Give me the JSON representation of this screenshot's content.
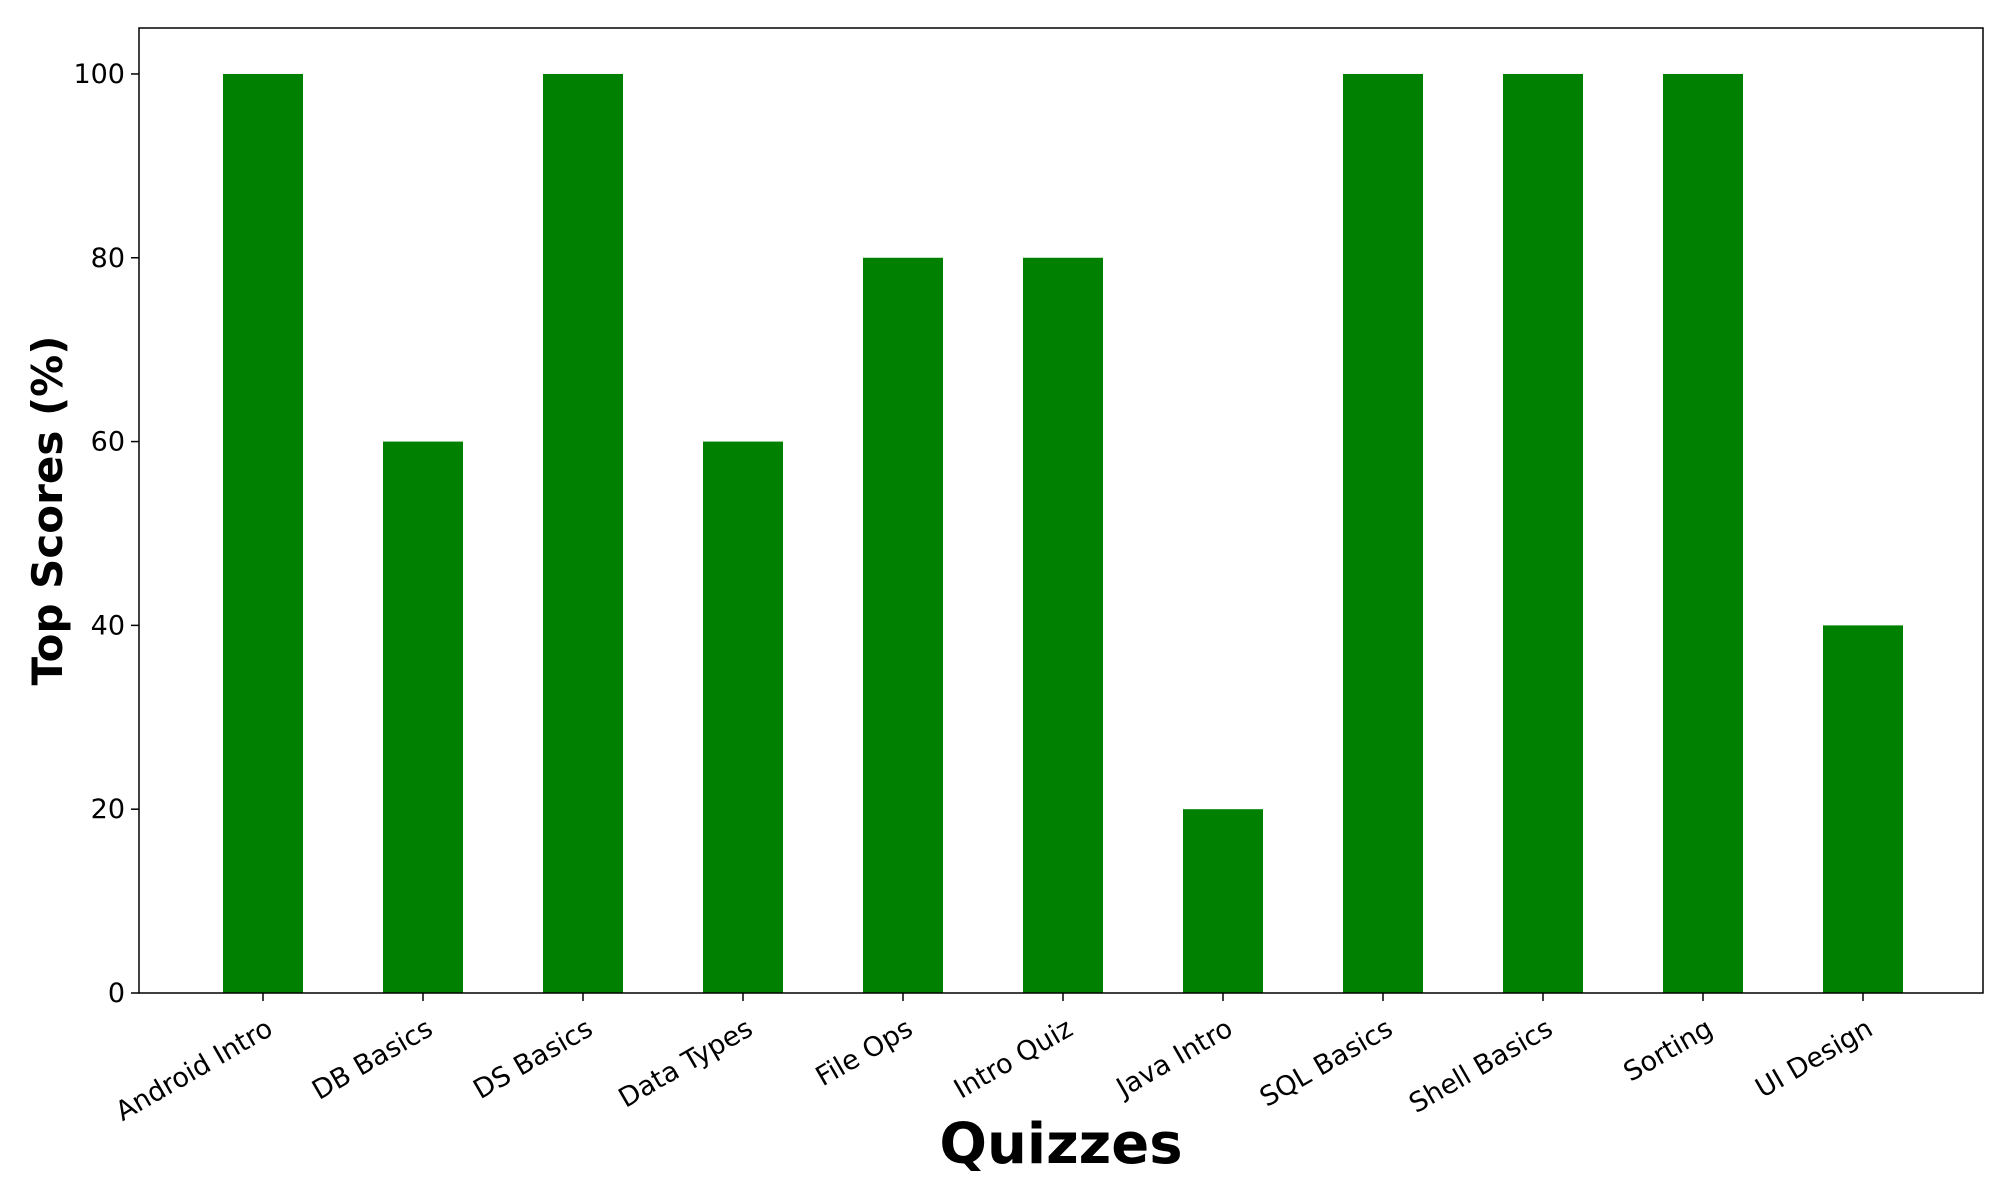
{
  "chart_data": {
    "type": "bar",
    "title": "",
    "xlabel": "Quizzes",
    "ylabel": "Top Scores (%)",
    "categories": [
      "Android Intro",
      "DB Basics",
      "DS Basics",
      "Data Types",
      "File Ops",
      "Intro Quiz",
      "Java Intro",
      "SQL Basics",
      "Shell Basics",
      "Sorting",
      "UI Design"
    ],
    "values": [
      100,
      60,
      100,
      60,
      80,
      80,
      20,
      100,
      100,
      100,
      40
    ],
    "ylim": [
      0,
      105
    ],
    "yticks": [
      0,
      20,
      40,
      60,
      80,
      100
    ],
    "bar_color": "#008000",
    "grid": false,
    "legend": false
  }
}
